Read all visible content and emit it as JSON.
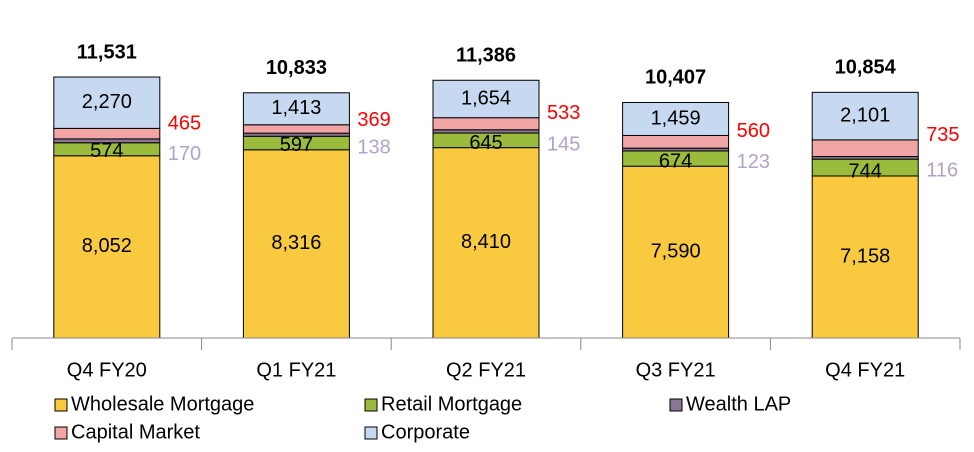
{
  "chart_data": {
    "type": "stacked_bar",
    "categories": [
      "Q4 FY20",
      "Q1 FY21",
      "Q2 FY21",
      "Q3 FY21",
      "Q4 FY21"
    ],
    "series": [
      {
        "name": "Wholesale Mortgage",
        "color": "#f9c940",
        "values": [
          8052,
          8316,
          8410,
          7590,
          7158
        ]
      },
      {
        "name": "Retail Mortgage",
        "color": "#9bbb3c",
        "values": [
          574,
          597,
          645,
          674,
          744
        ]
      },
      {
        "name": "Wealth LAP",
        "color": "#8a7596",
        "values": [
          170,
          138,
          145,
          123,
          116
        ]
      },
      {
        "name": "Capital Market",
        "color": "#f2a5a5",
        "values": [
          465,
          369,
          533,
          560,
          735
        ]
      },
      {
        "name": "Corporate",
        "color": "#c6d9f1",
        "values": [
          2270,
          1413,
          1654,
          1459,
          2101
        ]
      }
    ],
    "totals": [
      11531,
      10833,
      11386,
      10407,
      10854
    ],
    "totals_labels": [
      "11,531",
      "10,833",
      "11,386",
      "10,407",
      "10,854"
    ],
    "value_labels": [
      [
        "8,052",
        "8,316",
        "8,410",
        "7,590",
        "7,158"
      ],
      [
        "574",
        "597",
        "645",
        "674",
        "744"
      ],
      [
        "170",
        "138",
        "145",
        "123",
        "116"
      ],
      [
        "465",
        "369",
        "533",
        "560",
        "735"
      ],
      [
        "2,270",
        "1,413",
        "1,654",
        "1,459",
        "2,101"
      ]
    ],
    "outside_label_colors": {
      "Wealth LAP": "#b3a2c7",
      "Capital Market": "#ff0000"
    }
  }
}
